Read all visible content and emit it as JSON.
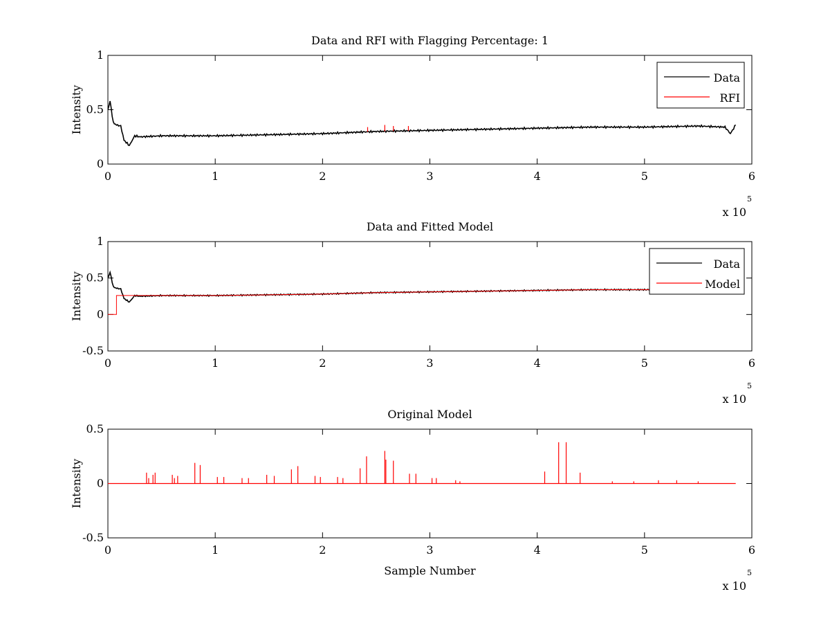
{
  "chart_data": [
    {
      "type": "line",
      "title": "Data and RFI with Flagging Percentage: 1",
      "xlabel": "",
      "ylabel": "Intensity",
      "xlim": [
        0,
        6
      ],
      "ylim": [
        0,
        1
      ],
      "x_ticks": [
        "0",
        "1",
        "2",
        "3",
        "4",
        "5",
        "6"
      ],
      "y_ticks": [
        "0",
        "0.5",
        "1"
      ],
      "x_multiplier": {
        "base": "x 10",
        "exponent": "5"
      },
      "legend": {
        "placement": "top-right",
        "entries": [
          "Data",
          "RFI"
        ]
      },
      "series": [
        {
          "name": "Data",
          "color": "#000000",
          "x": [
            0,
            0.02,
            0.05,
            0.08,
            0.12,
            0.15,
            0.2,
            0.25,
            0.3,
            0.5,
            1,
            1.5,
            2,
            2.5,
            3,
            3.5,
            4,
            4.5,
            5,
            5.5,
            5.75,
            5.8,
            5.85
          ],
          "y": [
            0.5,
            0.58,
            0.38,
            0.36,
            0.35,
            0.22,
            0.17,
            0.26,
            0.25,
            0.26,
            0.26,
            0.27,
            0.28,
            0.3,
            0.31,
            0.32,
            0.33,
            0.34,
            0.34,
            0.35,
            0.34,
            0.28,
            0.36
          ]
        },
        {
          "name": "RFI",
          "color": "#ff0000",
          "spikes": [
            {
              "x": 2.42,
              "y": 0.34
            },
            {
              "x": 2.58,
              "y": 0.36
            },
            {
              "x": 2.66,
              "y": 0.35
            },
            {
              "x": 2.8,
              "y": 0.35
            }
          ]
        }
      ]
    },
    {
      "type": "line",
      "title": "Data and Fitted Model",
      "xlabel": "",
      "ylabel": "Intensity",
      "xlim": [
        0,
        6
      ],
      "ylim": [
        -0.5,
        1
      ],
      "x_ticks": [
        "0",
        "1",
        "2",
        "3",
        "4",
        "5",
        "6"
      ],
      "y_ticks": [
        "-0.5",
        "0",
        "0.5",
        "1"
      ],
      "x_multiplier": {
        "base": "x 10",
        "exponent": "5"
      },
      "legend": {
        "placement": "top-right",
        "entries": [
          "Data",
          "Model"
        ]
      },
      "series": [
        {
          "name": "Data",
          "color": "#000000",
          "x": [
            0,
            0.02,
            0.05,
            0.08,
            0.12,
            0.15,
            0.2,
            0.25,
            0.3,
            0.5,
            1,
            1.5,
            2,
            2.5,
            3,
            3.5,
            4,
            4.5,
            5,
            5.5,
            5.75,
            5.8
          ],
          "y": [
            0.5,
            0.58,
            0.38,
            0.36,
            0.35,
            0.22,
            0.17,
            0.26,
            0.25,
            0.26,
            0.26,
            0.27,
            0.28,
            0.3,
            0.31,
            0.32,
            0.33,
            0.34,
            0.34,
            0.35,
            0.34,
            0.28
          ]
        },
        {
          "name": "Model",
          "color": "#ff0000",
          "x": [
            0,
            0.08,
            0.08,
            0.5,
            1,
            1.5,
            2,
            2.5,
            3,
            3.5,
            4,
            4.5,
            5,
            5.5,
            5.75
          ],
          "y": [
            0,
            0,
            0.26,
            0.26,
            0.26,
            0.27,
            0.28,
            0.3,
            0.31,
            0.32,
            0.33,
            0.34,
            0.34,
            0.35,
            0.34
          ]
        }
      ]
    },
    {
      "type": "line",
      "title": "Original Model",
      "xlabel": "Sample Number",
      "ylabel": "Intensity",
      "xlim": [
        0,
        6
      ],
      "ylim": [
        -0.5,
        0.5
      ],
      "x_ticks": [
        "0",
        "1",
        "2",
        "3",
        "4",
        "5",
        "6"
      ],
      "y_ticks": [
        "-0.5",
        "0",
        "0.5"
      ],
      "x_multiplier": {
        "base": "x 10",
        "exponent": "5"
      },
      "series": [
        {
          "color": "#ff0000",
          "baseline": {
            "x": [
              0,
              5.85
            ],
            "y": 0
          },
          "spikes": [
            {
              "x": 0.36,
              "y": 0.1
            },
            {
              "x": 0.38,
              "y": 0.05
            },
            {
              "x": 0.42,
              "y": 0.08
            },
            {
              "x": 0.44,
              "y": 0.1
            },
            {
              "x": 0.6,
              "y": 0.08
            },
            {
              "x": 0.62,
              "y": 0.05
            },
            {
              "x": 0.65,
              "y": 0.07
            },
            {
              "x": 0.81,
              "y": 0.19
            },
            {
              "x": 0.86,
              "y": 0.17
            },
            {
              "x": 1.02,
              "y": 0.06
            },
            {
              "x": 1.08,
              "y": 0.06
            },
            {
              "x": 1.25,
              "y": 0.05
            },
            {
              "x": 1.31,
              "y": 0.05
            },
            {
              "x": 1.48,
              "y": 0.08
            },
            {
              "x": 1.55,
              "y": 0.07
            },
            {
              "x": 1.71,
              "y": 0.13
            },
            {
              "x": 1.77,
              "y": 0.16
            },
            {
              "x": 1.93,
              "y": 0.07
            },
            {
              "x": 1.98,
              "y": 0.06
            },
            {
              "x": 2.14,
              "y": 0.06
            },
            {
              "x": 2.19,
              "y": 0.05
            },
            {
              "x": 2.35,
              "y": 0.14
            },
            {
              "x": 2.41,
              "y": 0.25
            },
            {
              "x": 2.58,
              "y": 0.3
            },
            {
              "x": 2.59,
              "y": 0.22
            },
            {
              "x": 2.66,
              "y": 0.21
            },
            {
              "x": 2.81,
              "y": 0.09
            },
            {
              "x": 2.87,
              "y": 0.09
            },
            {
              "x": 3.02,
              "y": 0.05
            },
            {
              "x": 3.06,
              "y": 0.05
            },
            {
              "x": 3.24,
              "y": 0.03
            },
            {
              "x": 3.28,
              "y": 0.02
            },
            {
              "x": 4.07,
              "y": 0.11
            },
            {
              "x": 4.2,
              "y": 0.38
            },
            {
              "x": 4.27,
              "y": 0.38
            },
            {
              "x": 4.4,
              "y": 0.1
            },
            {
              "x": 4.7,
              "y": 0.02
            },
            {
              "x": 4.9,
              "y": 0.02
            },
            {
              "x": 5.13,
              "y": 0.03
            },
            {
              "x": 5.3,
              "y": 0.03
            },
            {
              "x": 5.5,
              "y": 0.02
            }
          ]
        }
      ]
    }
  ]
}
